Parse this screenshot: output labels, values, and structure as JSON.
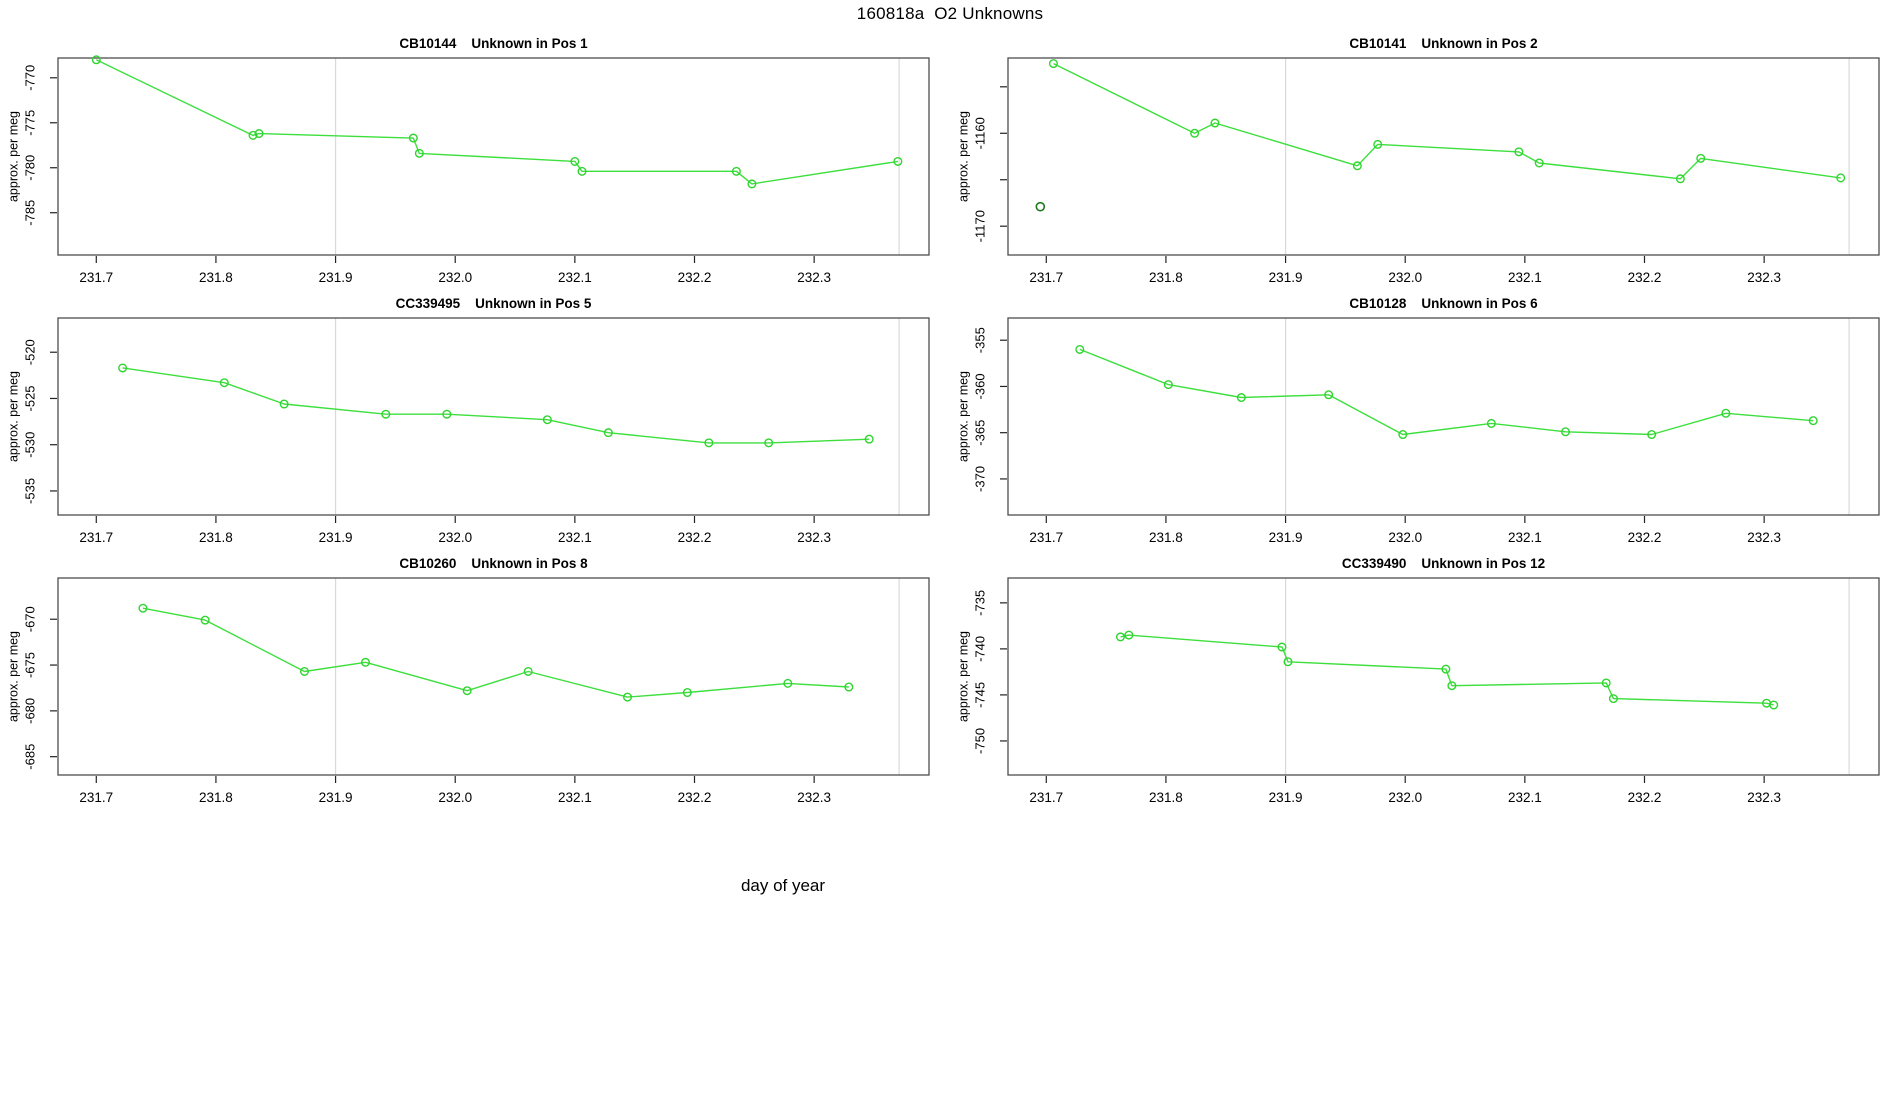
{
  "page_title": "160818a  O2 Unknowns",
  "shared_xlabel": "day of year",
  "colors": {
    "line": "#3ddf3d",
    "marker": "#2fd42f",
    "outlier_marker": "#1d7a1d",
    "gridline": "#d9d9d9",
    "box": "#4d4d4d",
    "tick": "#222222",
    "text": "#000000",
    "background": "#ffffff"
  },
  "chart_data": [
    {
      "type": "line",
      "sample_id": "CB10144",
      "pos_label": "Unknown in Pos 1",
      "ylabel": "approx. per meg",
      "xlim": [
        231.668,
        232.396
      ],
      "ylim": [
        -789.7,
        -767.8
      ],
      "xtick_vals": [
        231.7,
        231.8,
        231.9,
        232.0,
        232.1,
        232.2,
        232.3
      ],
      "xtick_labels": [
        "231.7",
        "231.8",
        "231.9",
        "232.0",
        "232.1",
        "232.2",
        "232.3"
      ],
      "ytick_vals": [
        -785,
        -780,
        -775,
        -770
      ],
      "ytick_labels": [
        "-785",
        "-780",
        "-775",
        "-770"
      ],
      "vlines": [
        231.9,
        232.371
      ],
      "x": [
        231.7,
        231.831,
        231.836,
        231.965,
        231.97,
        232.1,
        232.106,
        232.235,
        232.248,
        232.37
      ],
      "y": [
        -768.0,
        -776.4,
        -776.2,
        -776.7,
        -778.4,
        -779.3,
        -780.4,
        -780.4,
        -781.8,
        -779.3
      ]
    },
    {
      "type": "line",
      "sample_id": "CB10141",
      "pos_label": "Unknown in Pos 2",
      "ylabel": "approx. per meg",
      "xlim": [
        231.668,
        232.396
      ],
      "ylim": [
        -1173.1,
        -1151.9
      ],
      "xtick_vals": [
        231.7,
        231.8,
        231.9,
        232.0,
        232.1,
        232.2,
        232.3
      ],
      "xtick_labels": [
        "231.7",
        "231.8",
        "231.9",
        "232.0",
        "232.1",
        "232.2",
        "232.3"
      ],
      "ytick_vals": [
        -1170,
        -1165,
        -1160,
        -1155
      ],
      "ytick_labels": [
        "-1170",
        "",
        "-1160",
        ""
      ],
      "vlines": [
        231.9,
        232.371
      ],
      "x": [
        231.706,
        231.824,
        231.841,
        231.96,
        231.977,
        232.095,
        232.112,
        232.23,
        232.247,
        232.364
      ],
      "y": [
        -1152.5,
        -1160.0,
        -1158.9,
        -1163.5,
        -1161.2,
        -1162.0,
        -1163.2,
        -1164.9,
        -1162.7,
        -1164.8
      ],
      "outlier_point": {
        "x": 231.695,
        "y": -1167.9
      }
    },
    {
      "type": "line",
      "sample_id": "CC339495",
      "pos_label": "Unknown in Pos 5",
      "ylabel": "approx. per meg",
      "xlim": [
        231.668,
        232.396
      ],
      "ylim": [
        -537.6,
        -516.3
      ],
      "xtick_vals": [
        231.7,
        231.8,
        231.9,
        232.0,
        232.1,
        232.2,
        232.3
      ],
      "xtick_labels": [
        "231.7",
        "231.8",
        "231.9",
        "232.0",
        "232.1",
        "232.2",
        "232.3"
      ],
      "ytick_vals": [
        -535,
        -530,
        -525,
        -520
      ],
      "ytick_labels": [
        "-535",
        "-530",
        "-525",
        "-520"
      ],
      "vlines": [
        231.9,
        232.371
      ],
      "x": [
        231.722,
        231.807,
        231.857,
        231.942,
        231.993,
        232.077,
        232.128,
        232.212,
        232.262,
        232.346
      ],
      "y": [
        -521.7,
        -523.3,
        -525.6,
        -526.7,
        -526.7,
        -527.3,
        -528.7,
        -529.8,
        -529.8,
        -529.4
      ]
    },
    {
      "type": "line",
      "sample_id": "CB10128",
      "pos_label": "Unknown in Pos 6",
      "ylabel": "approx. per meg",
      "xlim": [
        231.668,
        232.396
      ],
      "ylim": [
        -373.9,
        -352.6
      ],
      "xtick_vals": [
        231.7,
        231.8,
        231.9,
        232.0,
        232.1,
        232.2,
        232.3
      ],
      "xtick_labels": [
        "231.7",
        "231.8",
        "231.9",
        "232.0",
        "232.1",
        "232.2",
        "232.3"
      ],
      "ytick_vals": [
        -370,
        -365,
        -360,
        -355
      ],
      "ytick_labels": [
        "-370",
        "-365",
        "-360",
        "-355"
      ],
      "vlines": [
        231.9,
        232.371
      ],
      "x": [
        231.728,
        231.802,
        231.863,
        231.936,
        231.998,
        232.072,
        232.134,
        232.206,
        232.268,
        232.341
      ],
      "y": [
        -356.0,
        -359.8,
        -361.2,
        -360.9,
        -365.2,
        -364.0,
        -364.9,
        -365.2,
        -362.9,
        -363.7
      ]
    },
    {
      "type": "line",
      "sample_id": "CB10260",
      "pos_label": "Unknown in Pos 8",
      "ylabel": "approx. per meg",
      "xlim": [
        231.668,
        232.396
      ],
      "ylim": [
        -687.0,
        -665.5
      ],
      "xtick_vals": [
        231.7,
        231.8,
        231.9,
        232.0,
        232.1,
        232.2,
        232.3
      ],
      "xtick_labels": [
        "231.7",
        "231.8",
        "231.9",
        "232.0",
        "232.1",
        "232.2",
        "232.3"
      ],
      "ytick_vals": [
        -685,
        -680,
        -675,
        -670
      ],
      "ytick_labels": [
        "-685",
        "-680",
        "-675",
        "-670"
      ],
      "vlines": [
        231.9,
        232.371
      ],
      "x": [
        231.739,
        231.791,
        231.874,
        231.925,
        232.01,
        232.061,
        232.144,
        232.194,
        232.278,
        232.329
      ],
      "y": [
        -668.8,
        -670.1,
        -675.7,
        -674.7,
        -677.8,
        -675.7,
        -678.5,
        -678.0,
        -677.0,
        -677.4
      ]
    },
    {
      "type": "line",
      "sample_id": "CC339490",
      "pos_label": "Unknown in Pos 12",
      "ylabel": "approx. per meg",
      "xlim": [
        231.668,
        232.396
      ],
      "ylim": [
        -753.7,
        -732.3
      ],
      "xtick_vals": [
        231.7,
        231.8,
        231.9,
        232.0,
        232.1,
        232.2,
        232.3
      ],
      "xtick_labels": [
        "231.7",
        "231.8",
        "231.9",
        "232.0",
        "232.1",
        "232.2",
        "232.3"
      ],
      "ytick_vals": [
        -750,
        -745,
        -740,
        -735
      ],
      "ytick_labels": [
        "-750",
        "-745",
        "-740",
        "-735"
      ],
      "vlines": [
        231.9,
        232.371
      ],
      "x": [
        231.762,
        231.769,
        231.897,
        231.902,
        232.034,
        232.039,
        232.168,
        232.174,
        232.302,
        232.308
      ],
      "y": [
        -738.7,
        -738.5,
        -739.8,
        -741.4,
        -742.2,
        -744.0,
        -743.7,
        -745.4,
        -745.9,
        -746.1
      ]
    }
  ]
}
